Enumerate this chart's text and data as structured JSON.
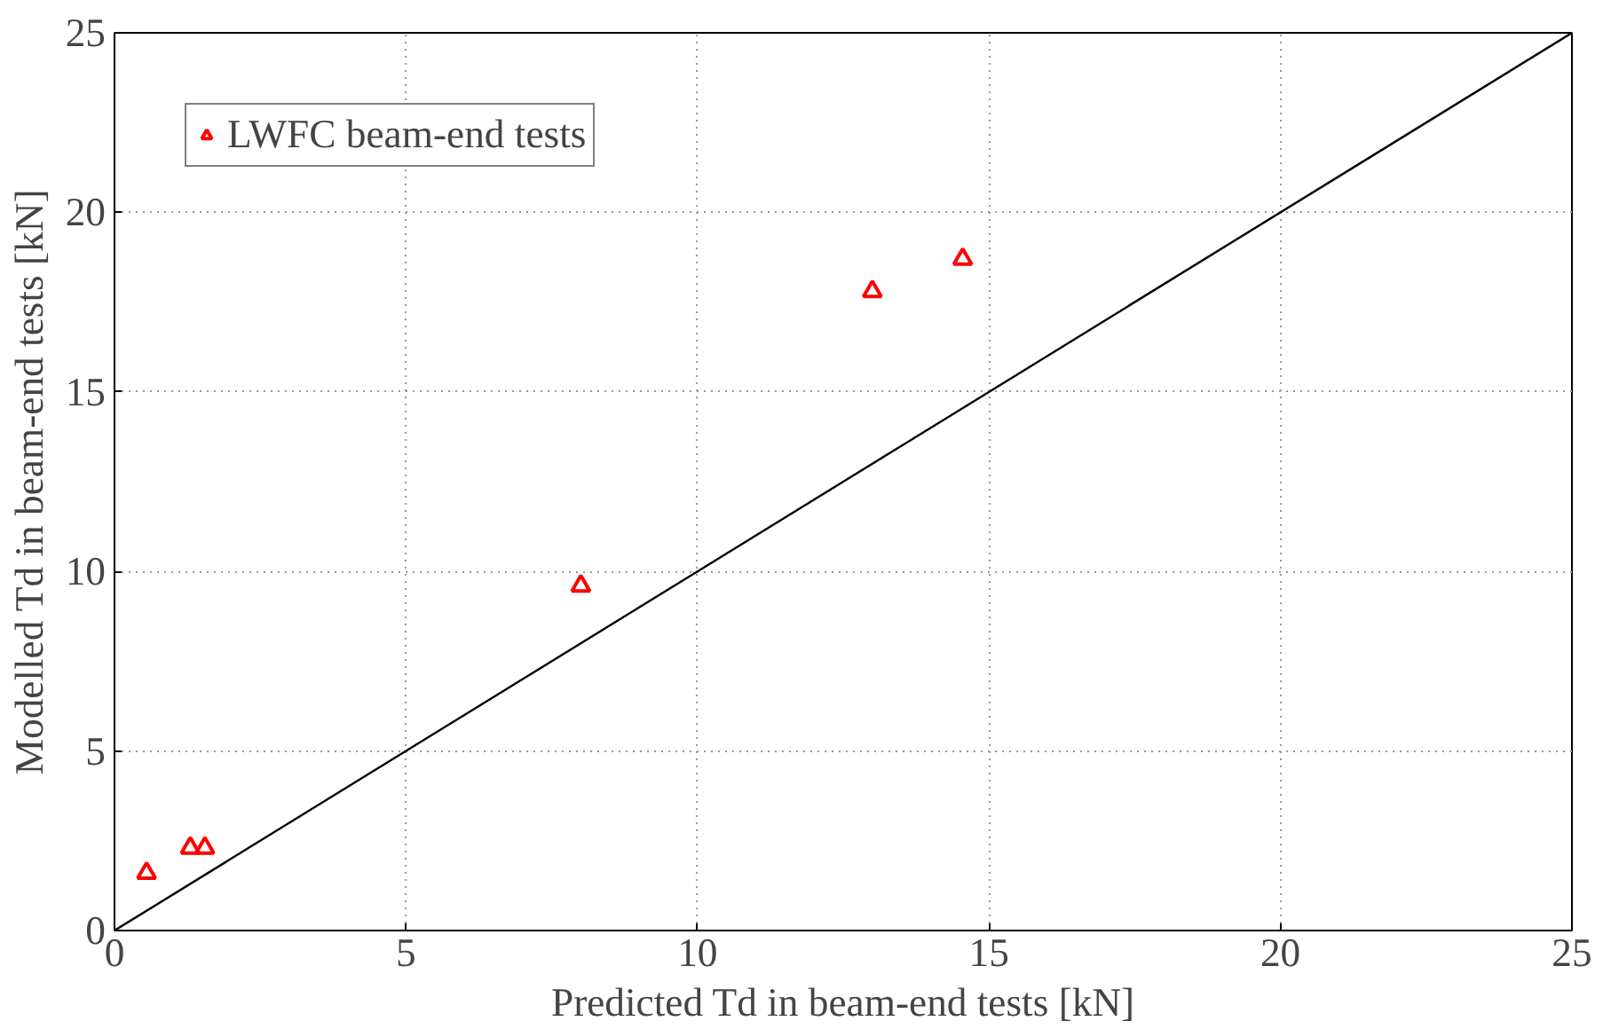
{
  "chart_data": {
    "type": "scatter",
    "xlabel": "Predicted Td in beam-end tests [kN]",
    "ylabel": "Modelled Td in beam-end tests [kN]",
    "xlim": [
      0,
      25
    ],
    "ylim": [
      0,
      25
    ],
    "xticks": [
      0,
      5,
      10,
      15,
      20,
      25
    ],
    "yticks": [
      0,
      5,
      10,
      15,
      20,
      25
    ],
    "grid": true,
    "legend": "top left",
    "marker": "triangle",
    "series": [
      {
        "name": "LWFC beam-end tests",
        "color": "#ff0000",
        "x": [
          0.55,
          1.3,
          1.55,
          8.0,
          13.0,
          14.55
        ],
        "values": [
          1.6,
          2.3,
          2.3,
          9.6,
          17.8,
          18.7
        ]
      },
      {
        "type": "line",
        "color": "#000000",
        "x": [
          0,
          25
        ],
        "values": [
          0,
          25
        ],
        "marker": "none"
      }
    ]
  }
}
